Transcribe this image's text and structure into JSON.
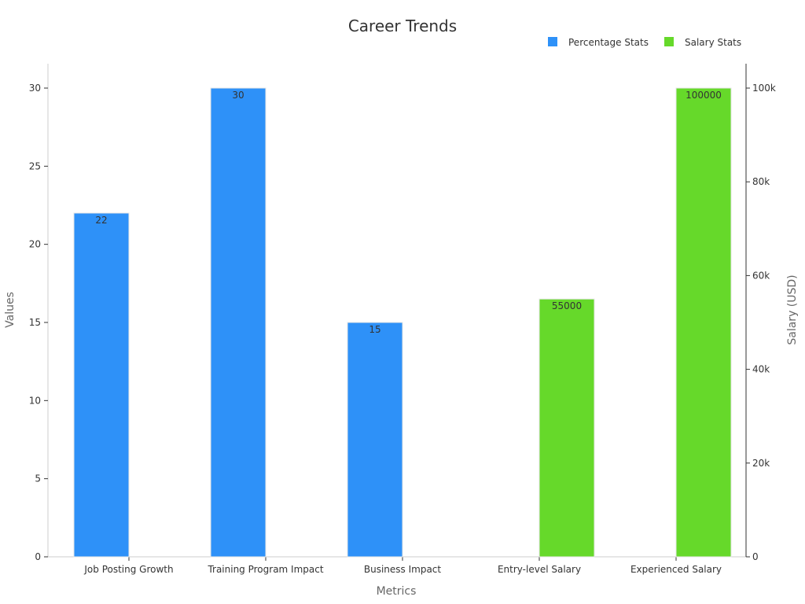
{
  "chart_data": {
    "type": "bar",
    "title": "Career Trends",
    "xlabel": "Metrics",
    "ylabel": "Values",
    "y2label": "Salary (USD)",
    "categories": [
      "Job Posting Growth",
      "Training Program Impact",
      "Business Impact",
      "Entry-level Salary",
      "Experienced Salary"
    ],
    "ylim": [
      0,
      31.5
    ],
    "y2lim": [
      0,
      105000
    ],
    "yticks": [
      0,
      5,
      10,
      15,
      20,
      25,
      30
    ],
    "y2ticks": [
      0,
      20000,
      40000,
      60000,
      80000,
      100000
    ],
    "y2tick_labels": [
      "0",
      "20k",
      "40k",
      "60k",
      "80k",
      "100k"
    ],
    "legend_position": "top-right",
    "grid": false,
    "series": [
      {
        "name": "Percentage Stats",
        "axis": "left",
        "color": "#2E91F8",
        "values": [
          22,
          30,
          15,
          null,
          null
        ],
        "labels": [
          "22",
          "30",
          "15",
          "",
          ""
        ]
      },
      {
        "name": "Salary Stats",
        "axis": "right",
        "color": "#66D92A",
        "values": [
          null,
          null,
          null,
          55000,
          100000
        ],
        "labels": [
          "",
          "",
          "",
          "55000",
          "100000"
        ]
      }
    ]
  }
}
